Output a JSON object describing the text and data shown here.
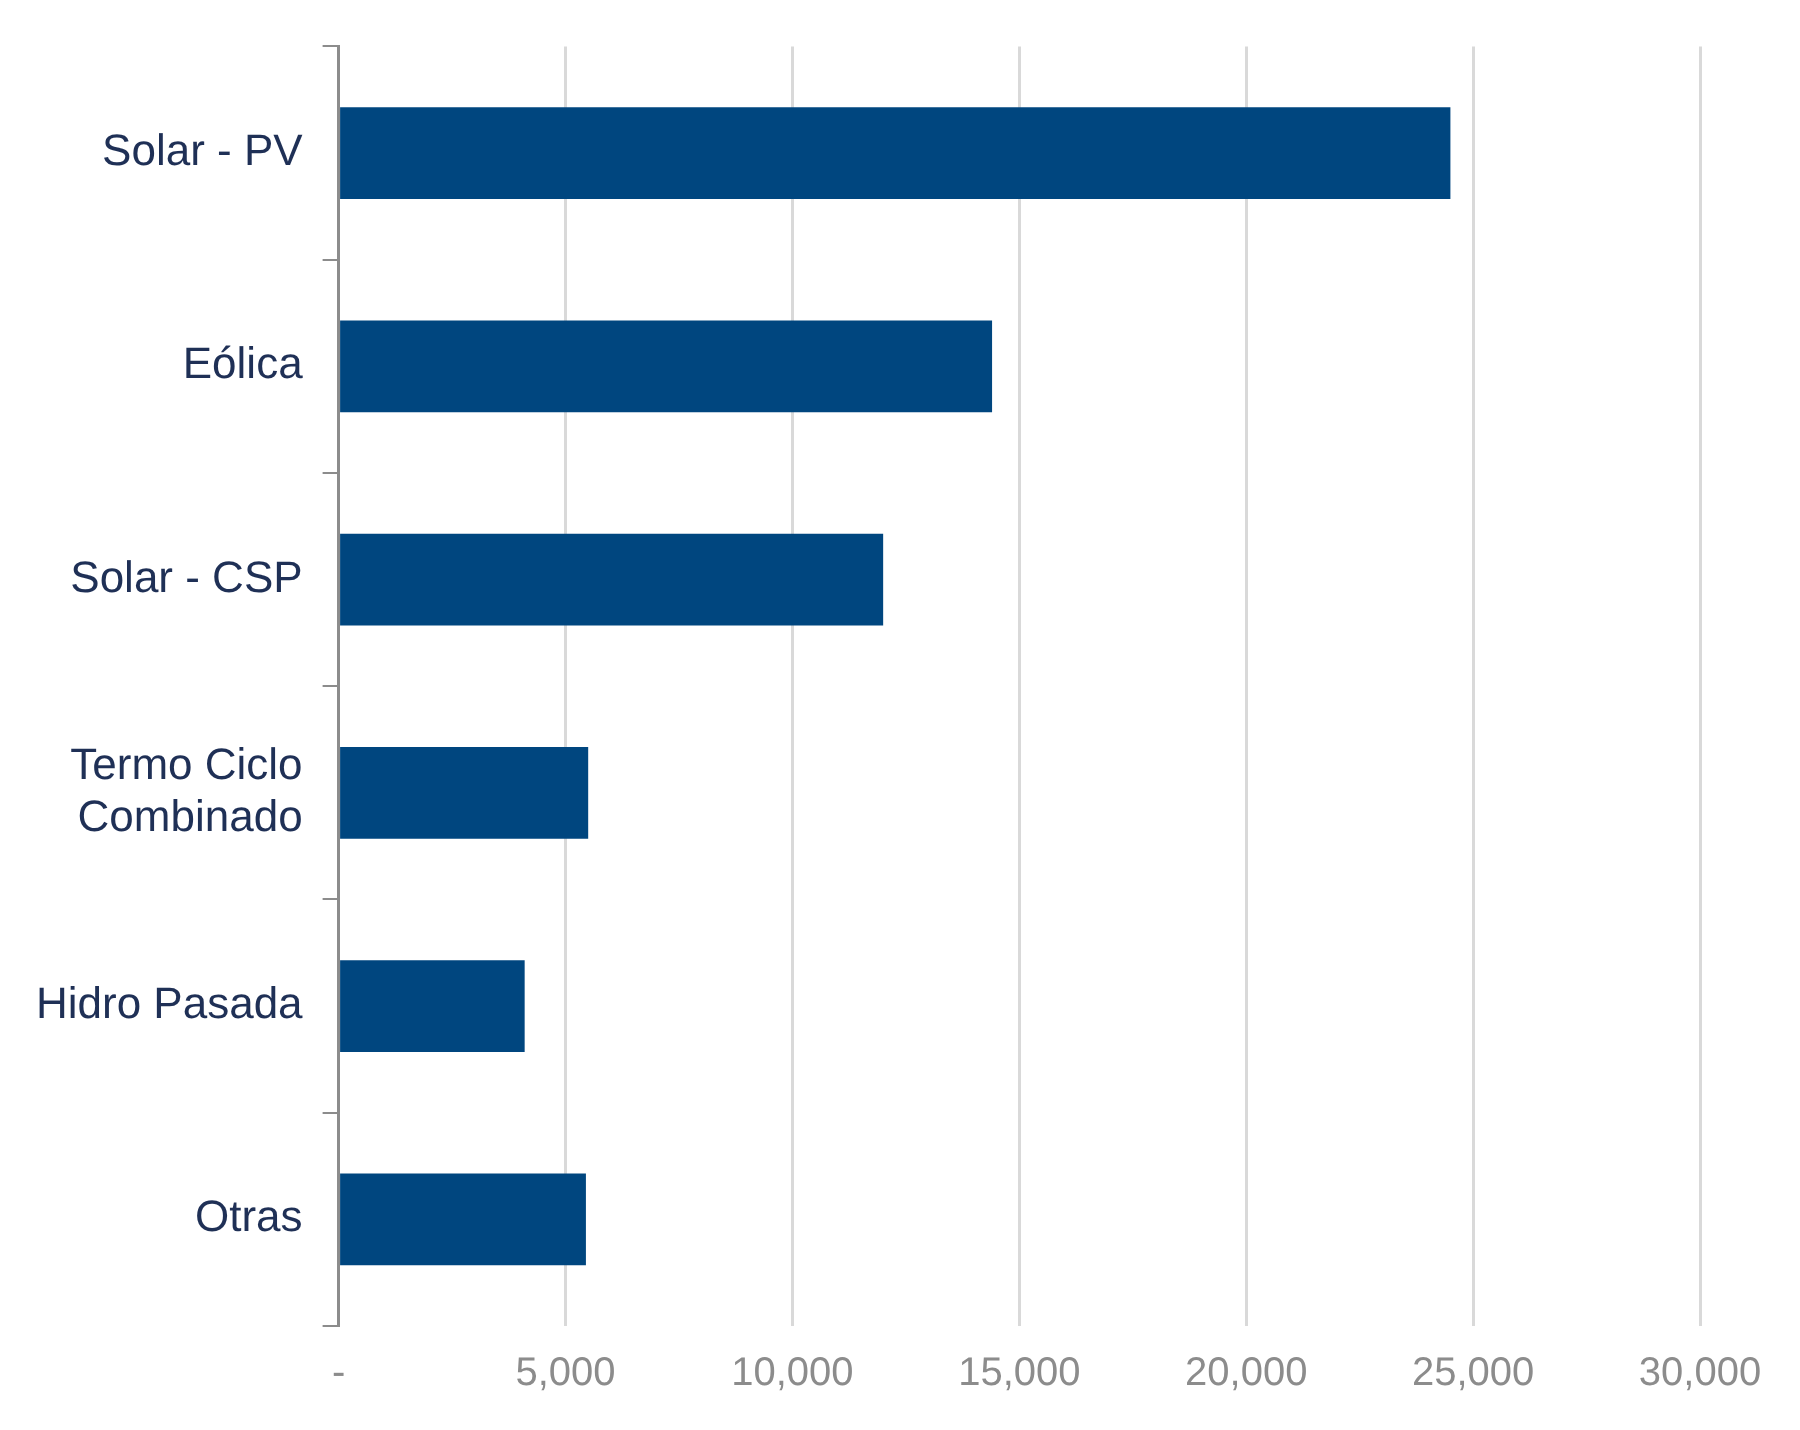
{
  "chart_data": {
    "type": "bar",
    "orientation": "horizontal",
    "categories": [
      "Solar - PV",
      "Eólica",
      "Solar - CSP",
      "Termo Ciclo Combinado",
      "Hidro Pasada",
      "Otras"
    ],
    "values": [
      24500,
      14400,
      12000,
      5500,
      4100,
      5450
    ],
    "color": "#00467f",
    "xlim": [
      0,
      30000
    ],
    "xticks": [
      {
        "value": 0,
        "label": "-"
      },
      {
        "value": 5000,
        "label": "5,000"
      },
      {
        "value": 10000,
        "label": "10,000"
      },
      {
        "value": 15000,
        "label": "15,000"
      },
      {
        "value": 20000,
        "label": "20,000"
      },
      {
        "value": 25000,
        "label": "25,000"
      },
      {
        "value": 30000,
        "label": "30,000"
      }
    ],
    "grid": "x"
  }
}
